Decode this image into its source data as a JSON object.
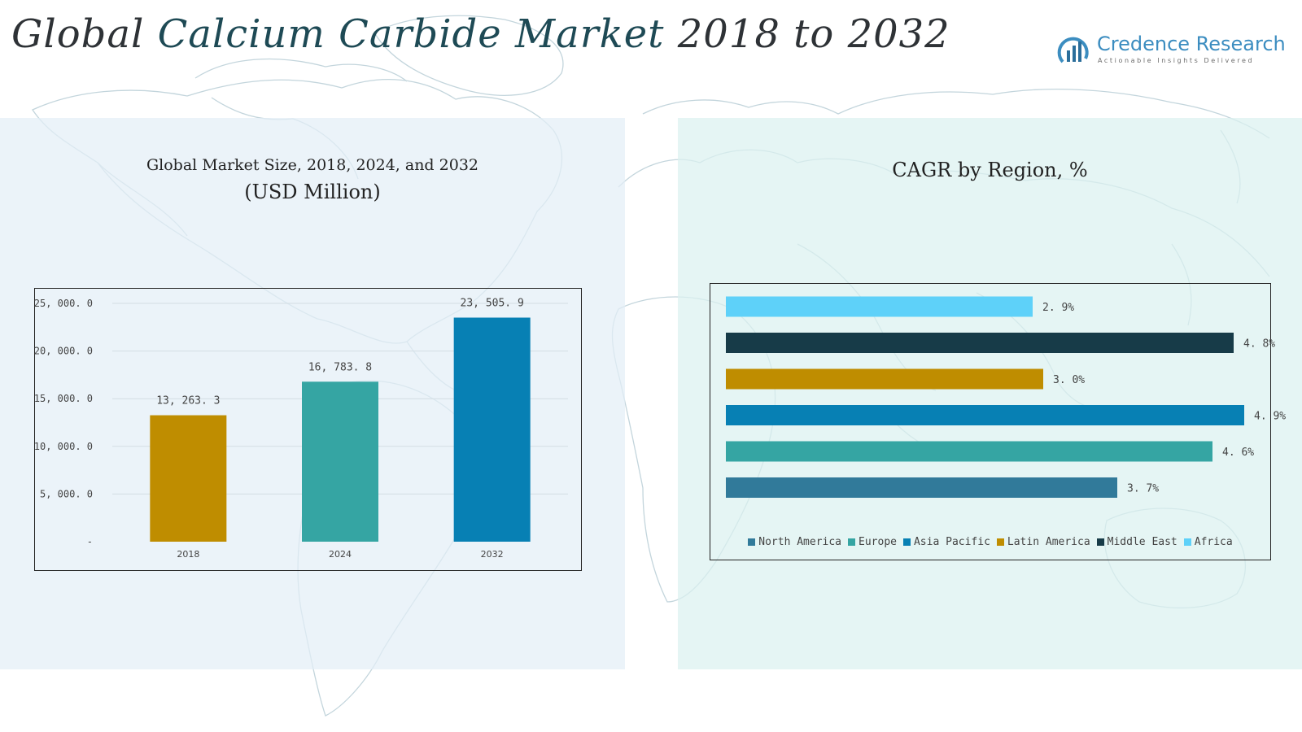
{
  "header": {
    "title_part1": "Global",
    "title_part2": "Calcium Carbide Market",
    "title_part3": "2018 to 2032"
  },
  "logo": {
    "name": "Credence Research",
    "tagline": "Actionable Insights Delivered"
  },
  "colors": {
    "background_map": "#c5d6dd",
    "title_accent": "#1e4a55",
    "logo_blue": "#3c8dc0"
  },
  "chart_data": [
    {
      "type": "bar",
      "title": "Global Market Size, 2018, 2024, and 2032",
      "subtitle": "(USD Million)",
      "categories": [
        "2018",
        "2024",
        "2032"
      ],
      "values": [
        13263.3,
        16783.8,
        23505.9
      ],
      "value_labels": [
        "13, 263. 3",
        "16, 783. 8",
        "23, 505. 9"
      ],
      "colors": [
        "#bf8d00",
        "#35a5a3",
        "#0780b4"
      ],
      "ylim": [
        0,
        25000
      ],
      "yticks": [
        0,
        5000,
        10000,
        15000,
        20000,
        25000
      ],
      "ytick_labels": [
        "-",
        "5, 000. 0",
        "10, 000. 0",
        "15, 000. 0",
        "20, 000. 0",
        "25, 000. 0"
      ],
      "grid": true
    },
    {
      "type": "bar",
      "orientation": "horizontal",
      "title": "CAGR by Region, %",
      "series": [
        {
          "name": "North America",
          "value": 3.7,
          "label": "3. 7%",
          "color": "#317a9a"
        },
        {
          "name": "Europe",
          "value": 4.6,
          "label": "4. 6%",
          "color": "#35a5a3"
        },
        {
          "name": "Asia Pacific",
          "value": 4.9,
          "label": "4. 9%",
          "color": "#0780b4"
        },
        {
          "name": "Latin America",
          "value": 3.0,
          "label": "3. 0%",
          "color": "#bf8d00"
        },
        {
          "name": "Middle East",
          "value": 4.8,
          "label": "4. 8%",
          "color": "#173b48"
        },
        {
          "name": "Africa",
          "value": 2.9,
          "label": "2. 9%",
          "color": "#5ed1f9"
        }
      ],
      "bar_order_top_to_bottom": [
        "Africa",
        "Middle East",
        "Latin America",
        "Asia Pacific",
        "Europe",
        "North America"
      ],
      "xlim": [
        0,
        4.9
      ],
      "legend_position": "bottom",
      "grid": false
    }
  ]
}
